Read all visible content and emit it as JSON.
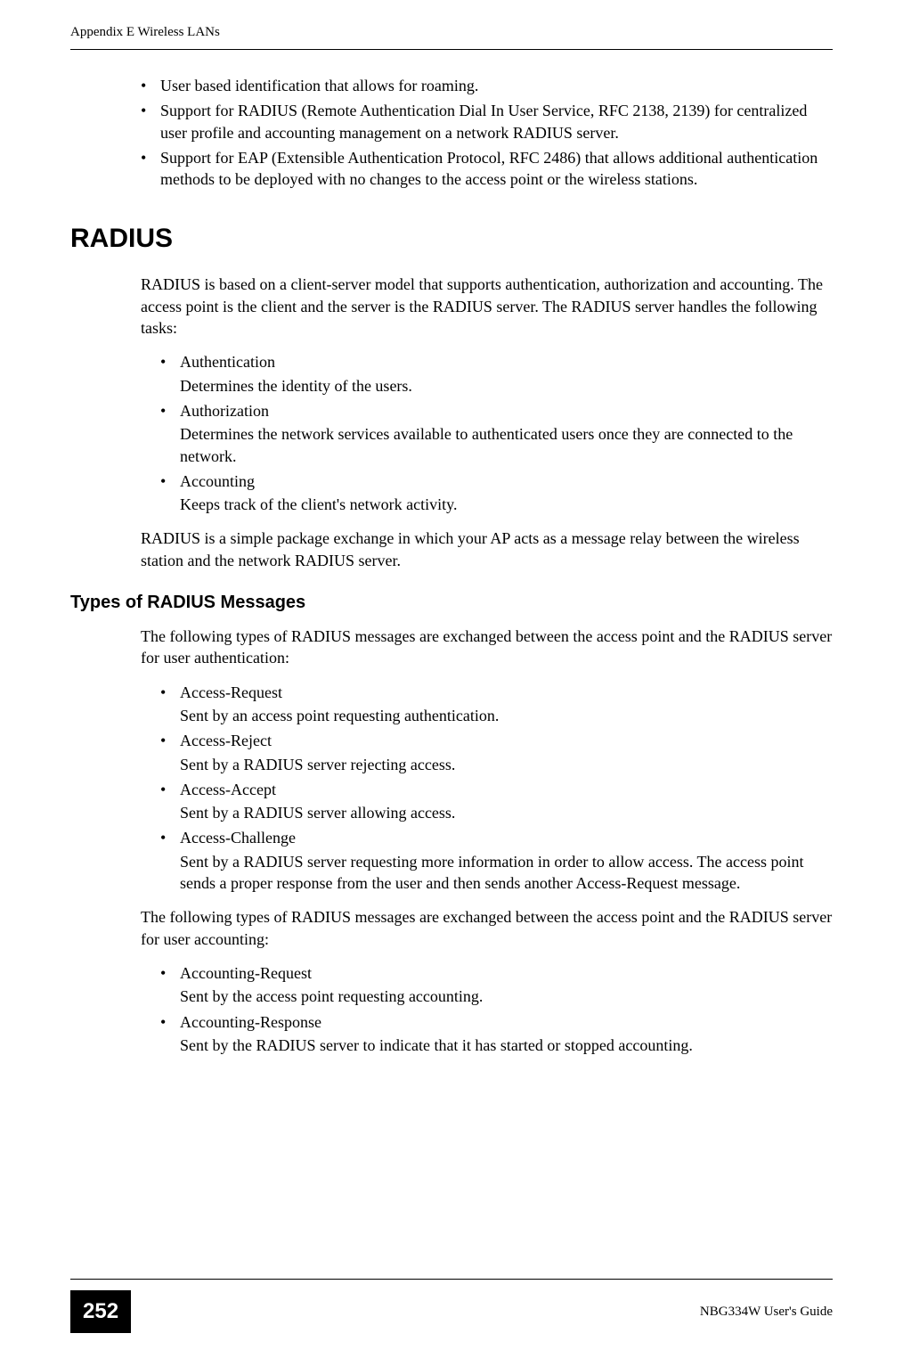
{
  "header": {
    "left": "Appendix E Wireless LANs",
    "right": ""
  },
  "intro_bullets": [
    "User based identification that allows for roaming.",
    "Support for RADIUS (Remote Authentication Dial In User Service, RFC 2138, 2139) for centralized user profile and accounting management on a network RADIUS server.",
    "Support for EAP (Extensible Authentication Protocol, RFC 2486) that allows additional authentication methods to be deployed with no changes to the access point or the wireless stations."
  ],
  "h1": "RADIUS",
  "radius_intro": "RADIUS is based on a client-server model that supports authentication, authorization and accounting. The access point is the client and the server is the RADIUS server. The RADIUS server handles the following tasks:",
  "radius_tasks": [
    {
      "title": "Authentication",
      "desc": "Determines the identity of the users."
    },
    {
      "title": "Authorization",
      "desc": "Determines the network services available to authenticated users once they are connected to the network."
    },
    {
      "title": "Accounting",
      "desc": "Keeps track of the client's network activity."
    }
  ],
  "radius_outro": "RADIUS is a simple package exchange in which your AP acts as a message relay between the wireless station and the network RADIUS server.",
  "h2": "Types of RADIUS Messages",
  "messages_intro": "The following types of RADIUS messages are exchanged between the access point and the RADIUS server for user authentication:",
  "auth_messages": [
    {
      "title": "Access-Request",
      "desc": "Sent by an access point requesting authentication."
    },
    {
      "title": "Access-Reject",
      "desc": "Sent by a RADIUS server rejecting access."
    },
    {
      "title": "Access-Accept",
      "desc": "Sent by a RADIUS server allowing access."
    },
    {
      "title": "Access-Challenge",
      "desc": "Sent by a RADIUS server requesting more information in order to allow access. The access point sends a proper response from the user and then sends another Access-Request message."
    }
  ],
  "accounting_intro": "The following types of RADIUS messages are exchanged between the access point and the RADIUS server for user accounting:",
  "accounting_messages": [
    {
      "title": "Accounting-Request",
      "desc": "Sent by the access point requesting accounting."
    },
    {
      "title": "Accounting-Response",
      "desc": "Sent by the RADIUS server to indicate that it has started or stopped accounting."
    }
  ],
  "footer": {
    "page_number": "252",
    "guide": "NBG334W User's Guide"
  }
}
